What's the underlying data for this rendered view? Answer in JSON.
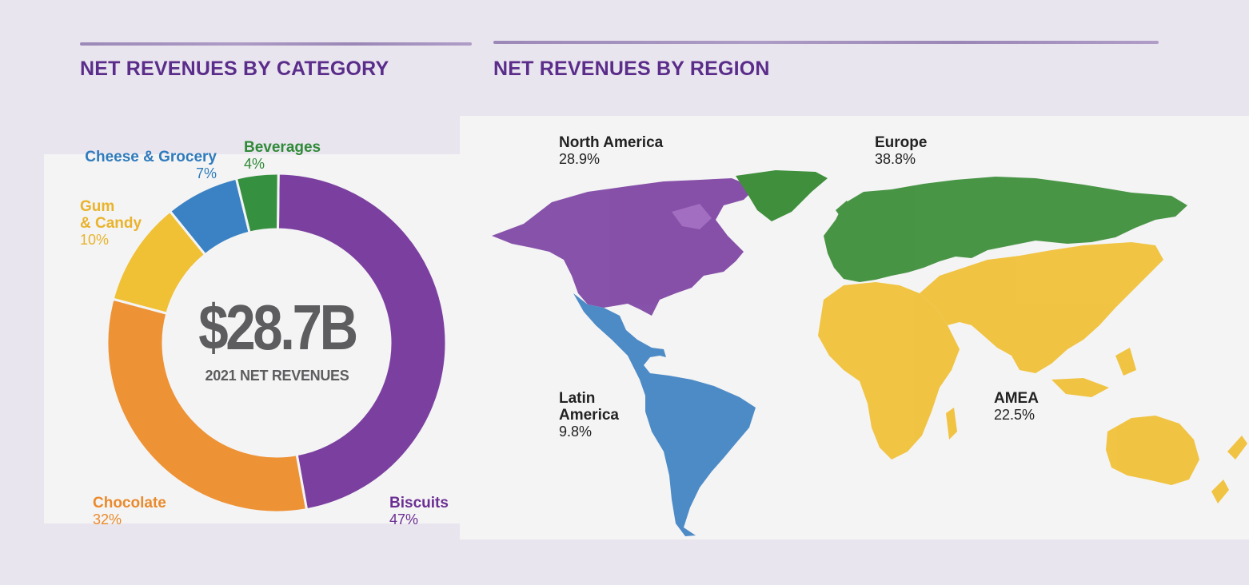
{
  "category_heading": "NET REVENUES BY CATEGORY",
  "region_heading": "NET REVENUES BY REGION",
  "center": {
    "value": "$28.7B",
    "label": "2021 NET REVENUES"
  },
  "chart_data": [
    {
      "type": "pie",
      "title": "NET REVENUES BY CATEGORY",
      "categories": [
        "Biscuits",
        "Chocolate",
        "Gum & Candy",
        "Cheese & Grocery",
        "Beverages"
      ],
      "values": [
        47,
        32,
        10,
        7,
        4
      ],
      "labels": [
        "47%",
        "32%",
        "10%",
        "7%",
        "4%"
      ],
      "colors": [
        "#7b3fa0",
        "#ee9236",
        "#f0c035",
        "#3a82c4",
        "#35913f"
      ],
      "legend_placement": "outside labels"
    },
    {
      "type": "map",
      "title": "NET REVENUES BY REGION",
      "categories": [
        "North America",
        "Europe",
        "Latin America",
        "AMEA"
      ],
      "values": [
        28.9,
        38.8,
        9.8,
        22.5
      ],
      "labels": [
        "28.9%",
        "38.8%",
        "9.8%",
        "22.5%"
      ],
      "colors": [
        "#7b3fa0",
        "#3f8f3c",
        "#3f82c3",
        "#f0c035"
      ]
    }
  ],
  "donut_labels": {
    "biscuits": {
      "name": "Biscuits",
      "pct": "47%"
    },
    "chocolate": {
      "name": "Chocolate",
      "pct": "32%"
    },
    "gum": {
      "name1": "Gum",
      "name2": "& Candy",
      "pct": "10%"
    },
    "cheese": {
      "name": "Cheese & Grocery",
      "pct": "7%"
    },
    "beverages": {
      "name": "Beverages",
      "pct": "4%"
    }
  },
  "region_labels": {
    "north_america": {
      "name": "North America",
      "pct": "28.9%"
    },
    "europe": {
      "name": "Europe",
      "pct": "38.8%"
    },
    "latin_america": {
      "name1": "Latin",
      "name2": "America",
      "pct": "9.8%"
    },
    "amea": {
      "name": "AMEA",
      "pct": "22.5%"
    }
  }
}
